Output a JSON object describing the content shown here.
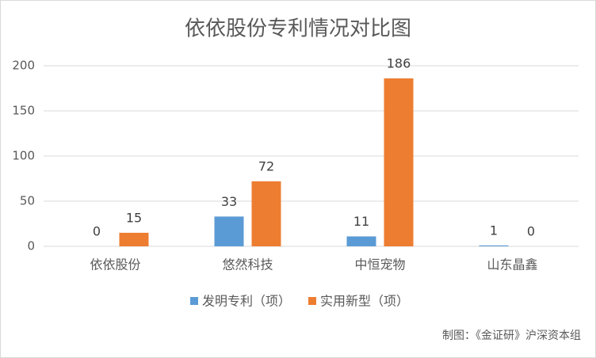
{
  "chart_data": {
    "type": "bar",
    "title": "依依股份专利情况对比图",
    "categories": [
      "依依股份",
      "悠然科技",
      "中恒宠物",
      "山东晶鑫"
    ],
    "series": [
      {
        "name": "发明专利（项）",
        "color": "#5b9bd5",
        "values": [
          0,
          33,
          11,
          1
        ]
      },
      {
        "name": "实用新型（项）",
        "color": "#ed7d31",
        "values": [
          15,
          72,
          186,
          0
        ]
      }
    ],
    "ylim": [
      0,
      200
    ],
    "yticks": [
      0,
      50,
      100,
      150,
      200
    ],
    "grid": true,
    "legend": "bottom",
    "source": "制图：《金证研》沪深资本组"
  }
}
